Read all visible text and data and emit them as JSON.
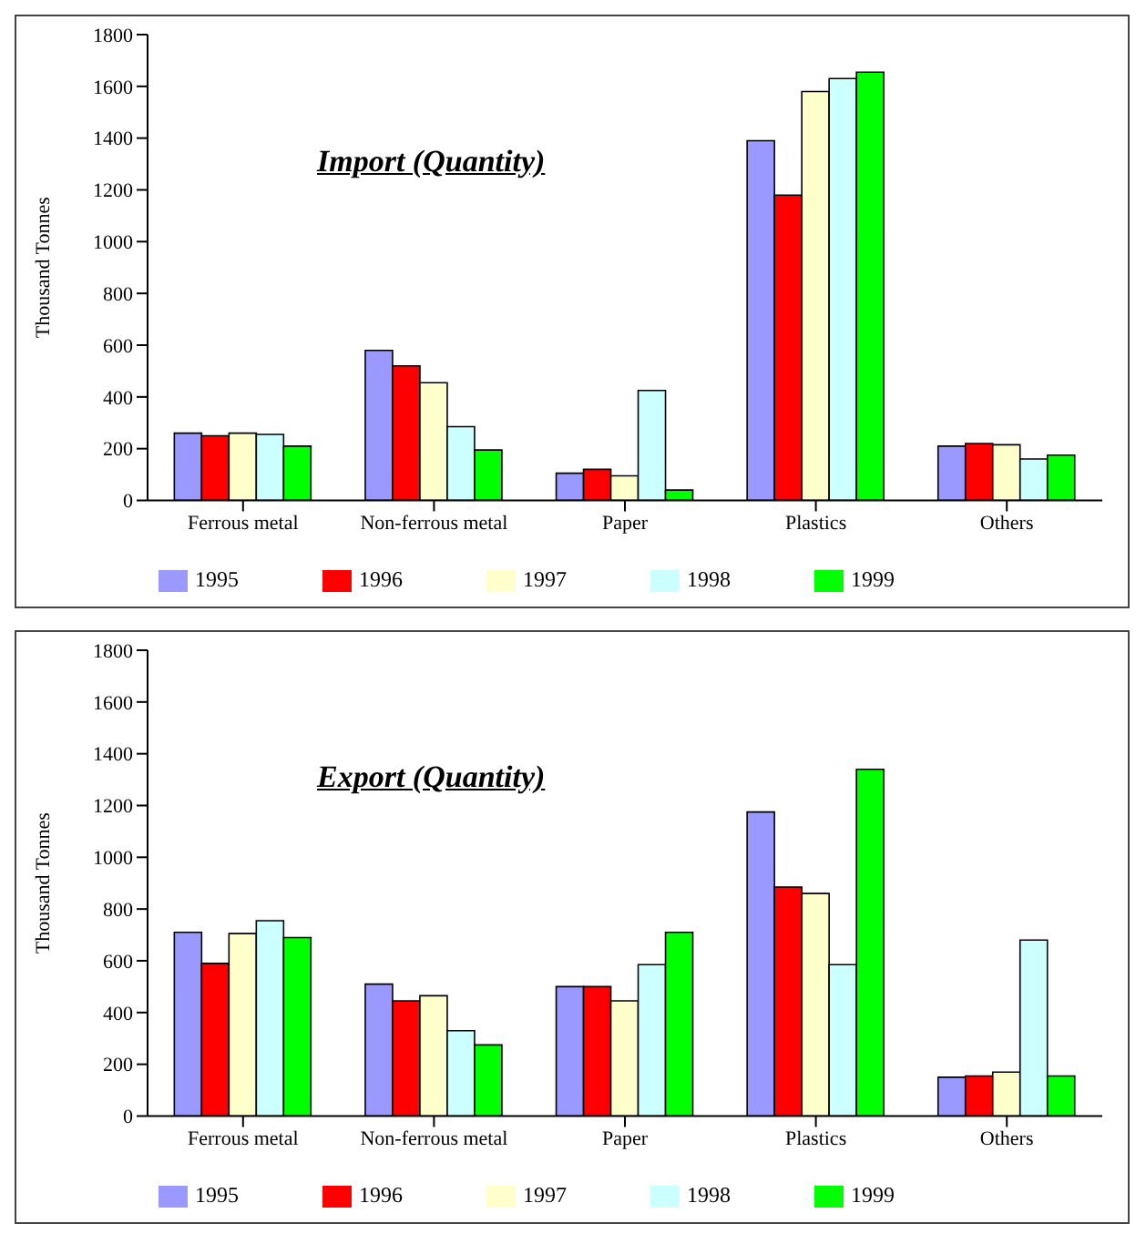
{
  "chart_data": [
    {
      "type": "bar",
      "title": "Import (Quantity)",
      "ylabel": "Thousand Tonnes",
      "categories": [
        "Ferrous metal",
        "Non-ferrous metal",
        "Paper",
        "Plastics",
        "Others"
      ],
      "ylim": [
        0,
        1800
      ],
      "yticks": [
        0,
        200,
        400,
        600,
        800,
        1000,
        1200,
        1400,
        1600,
        1800
      ],
      "grid": false,
      "legend": "bottom",
      "series": [
        {
          "name": "1995",
          "color": "#9999ff",
          "values": [
            260,
            580,
            105,
            1390,
            210
          ]
        },
        {
          "name": "1996",
          "color": "#ff0000",
          "values": [
            250,
            520,
            120,
            1180,
            220
          ]
        },
        {
          "name": "1997",
          "color": "#ffffcc",
          "values": [
            260,
            455,
            95,
            1580,
            215
          ]
        },
        {
          "name": "1998",
          "color": "#ccffff",
          "values": [
            255,
            285,
            425,
            1630,
            160
          ]
        },
        {
          "name": "1999",
          "color": "#00ff00",
          "values": [
            210,
            195,
            40,
            1655,
            175
          ]
        }
      ]
    },
    {
      "type": "bar",
      "title": "Export (Quantity)",
      "ylabel": "Thousand Tonnes",
      "categories": [
        "Ferrous metal",
        "Non-ferrous metal",
        "Paper",
        "Plastics",
        "Others"
      ],
      "ylim": [
        0,
        1800
      ],
      "yticks": [
        0,
        200,
        400,
        600,
        800,
        1000,
        1200,
        1400,
        1600,
        1800
      ],
      "grid": false,
      "legend": "bottom",
      "series": [
        {
          "name": "1995",
          "color": "#9999ff",
          "values": [
            710,
            510,
            500,
            1175,
            150
          ]
        },
        {
          "name": "1996",
          "color": "#ff0000",
          "values": [
            590,
            445,
            500,
            885,
            155
          ]
        },
        {
          "name": "1997",
          "color": "#ffffcc",
          "values": [
            705,
            465,
            445,
            860,
            170
          ]
        },
        {
          "name": "1998",
          "color": "#ccffff",
          "values": [
            755,
            330,
            585,
            585,
            680
          ]
        },
        {
          "name": "1999",
          "color": "#00ff00",
          "values": [
            690,
            275,
            710,
            1340,
            155
          ]
        }
      ]
    }
  ]
}
